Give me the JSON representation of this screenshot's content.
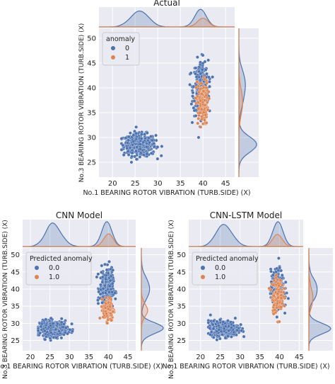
{
  "colors": {
    "panel_bg": "#eaeaf2",
    "grid": "#ffffff",
    "class_0": "#4c72b0",
    "class_1": "#dd8452"
  },
  "chart_data": [
    {
      "type": "scatter",
      "title": "Actual",
      "xlabel": "No.1 BEARING ROTOR VIBRATION (TURB.SIDE) (X)",
      "ylabel": "No.3 BEARING ROTOR VIBRATION (TURB.SIDE) (X)",
      "xlim": [
        17,
        47
      ],
      "ylim": [
        22,
        52
      ],
      "xticks": [
        20,
        25,
        30,
        35,
        40,
        45
      ],
      "yticks": [
        25,
        30,
        35,
        40,
        45,
        50
      ],
      "grid": true,
      "marginals": "kde",
      "legend": {
        "title": "anomaly",
        "position": "top-left",
        "entries": [
          "0",
          "1"
        ]
      },
      "series": [
        {
          "name": "0",
          "color": "#4c72b0",
          "clusters": [
            {
              "x_center": 26,
              "y_center": 28.5,
              "x_spread": 3.2,
              "y_spread": 2.0,
              "x_range": [
                22,
                33
              ],
              "y_range": [
                25,
                34
              ]
            },
            {
              "x_center": 39.5,
              "y_center": 40,
              "x_spread": 1.5,
              "y_spread": 5.0,
              "x_range": [
                37,
                43
              ],
              "y_range": [
                30,
                49
              ]
            }
          ]
        },
        {
          "name": "1",
          "color": "#dd8452",
          "clusters": [
            {
              "x_center": 39.8,
              "y_center": 37,
              "x_spread": 1.2,
              "y_spread": 4.0,
              "x_range": [
                37,
                42
              ],
              "y_range": [
                30,
                44
              ]
            }
          ]
        }
      ]
    },
    {
      "type": "scatter",
      "title": "CNN Model",
      "xlabel": "No.1 BEARING ROTOR VIBRATION (TURB.SIDE) (X)",
      "ylabel": "No.3 BEARING ROTOR VIBRATION (TURB.SIDE) (X)",
      "xlim": [
        18,
        47
      ],
      "ylim": [
        22,
        52
      ],
      "xticks": [
        20,
        25,
        30,
        35,
        40,
        45
      ],
      "yticks": [
        25,
        30,
        35,
        40,
        45,
        50
      ],
      "grid": true,
      "marginals": "kde",
      "legend": {
        "title": "Predicted anomaly",
        "position": "top-left",
        "entries": [
          "0.0",
          "1.0"
        ]
      },
      "series": [
        {
          "name": "0.0",
          "color": "#4c72b0",
          "clusters": [
            {
              "x_center": 26,
              "y_center": 28.5,
              "x_spread": 3.2,
              "y_spread": 2.0,
              "x_range": [
                22,
                33
              ],
              "y_range": [
                25,
                34
              ]
            },
            {
              "x_center": 39.5,
              "y_center": 40,
              "x_spread": 1.5,
              "y_spread": 5.0,
              "x_range": [
                37,
                43
              ],
              "y_range": [
                30,
                49
              ]
            }
          ]
        },
        {
          "name": "1.0",
          "color": "#dd8452",
          "clusters": [
            {
              "x_center": 40,
              "y_center": 34,
              "x_spread": 1.2,
              "y_spread": 3.0,
              "x_range": [
                37,
                43
              ],
              "y_range": [
                30,
                40
              ]
            }
          ]
        }
      ]
    },
    {
      "type": "scatter",
      "title": "CNN-LSTM Model",
      "xlabel": "No.1 BEARING ROTOR VIBRATION (TURB.SIDE) (X)",
      "ylabel": "No.3 BEARING ROTOR VIBRATION (TURB.SIDE) (X)",
      "xlim": [
        17,
        46
      ],
      "ylim": [
        22,
        52
      ],
      "xticks": [
        20,
        25,
        30,
        35,
        40,
        45
      ],
      "yticks": [
        25,
        30,
        35,
        40,
        45,
        50
      ],
      "grid": true,
      "marginals": "kde",
      "legend": {
        "title": "Predicted anomaly",
        "position": "top-left",
        "entries": [
          "0.0",
          "1.0"
        ]
      },
      "series": [
        {
          "name": "0.0",
          "color": "#4c72b0",
          "clusters": [
            {
              "x_center": 26,
              "y_center": 28.5,
              "x_spread": 3.2,
              "y_spread": 2.0,
              "x_range": [
                22,
                33
              ],
              "y_range": [
                25,
                34
              ]
            },
            {
              "x_center": 39.5,
              "y_center": 40,
              "x_spread": 1.5,
              "y_spread": 5.0,
              "x_range": [
                37,
                43
              ],
              "y_range": [
                30,
                49
              ]
            }
          ]
        },
        {
          "name": "1.0",
          "color": "#dd8452",
          "clusters": [
            {
              "x_center": 39.5,
              "y_center": 38,
              "x_spread": 1.3,
              "y_spread": 4.5,
              "x_range": [
                37,
                42
              ],
              "y_range": [
                30,
                47
              ]
            }
          ]
        }
      ]
    }
  ]
}
